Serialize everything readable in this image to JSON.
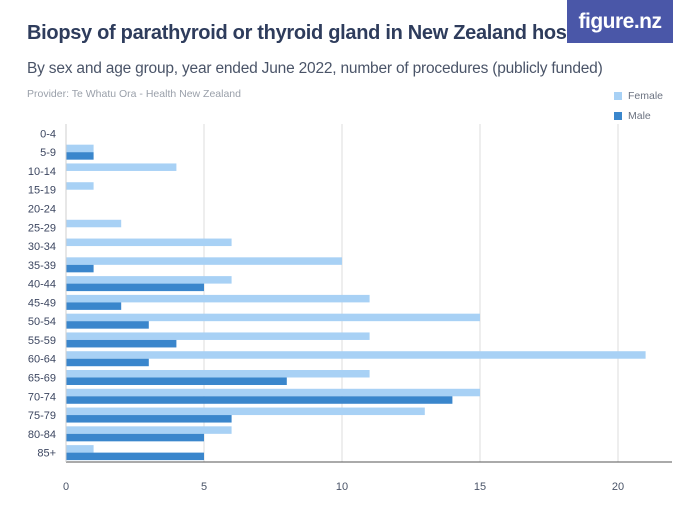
{
  "header": {
    "title": "Biopsy of parathyroid or thyroid gland in New Zealand hospitals",
    "subtitle": "By sex and age group, year ended June 2022, number of procedures (publicly funded)",
    "provider": "Provider: Te Whatu Ora - Health New Zealand",
    "logo": "figure.nz"
  },
  "colors": {
    "female": "#a8d1f5",
    "male": "#3a86cc",
    "grid": "#dcdcdc"
  },
  "chart_data": {
    "type": "bar",
    "orientation": "horizontal",
    "title": "Biopsy of parathyroid or thyroid gland in New Zealand hospitals",
    "subtitle": "By sex and age group, year ended June 2022, number of procedures (publicly funded)",
    "categories": [
      "0-4",
      "5-9",
      "10-14",
      "15-19",
      "20-24",
      "25-29",
      "30-34",
      "35-39",
      "40-44",
      "45-49",
      "50-54",
      "55-59",
      "60-64",
      "65-69",
      "70-74",
      "75-79",
      "80-84",
      "85+"
    ],
    "series": [
      {
        "name": "Female",
        "values": [
          0,
          1,
          4,
          1,
          0,
          2,
          6,
          10,
          6,
          11,
          15,
          11,
          21,
          11,
          15,
          13,
          6,
          1
        ]
      },
      {
        "name": "Male",
        "values": [
          0,
          1,
          0,
          0,
          0,
          0,
          0,
          1,
          5,
          2,
          3,
          4,
          3,
          8,
          14,
          6,
          5,
          5
        ]
      }
    ],
    "xlim": [
      0,
      22
    ],
    "xticks": [
      "0",
      "5",
      "10",
      "15",
      "20"
    ],
    "grid": true,
    "legend_position": "top-right"
  }
}
